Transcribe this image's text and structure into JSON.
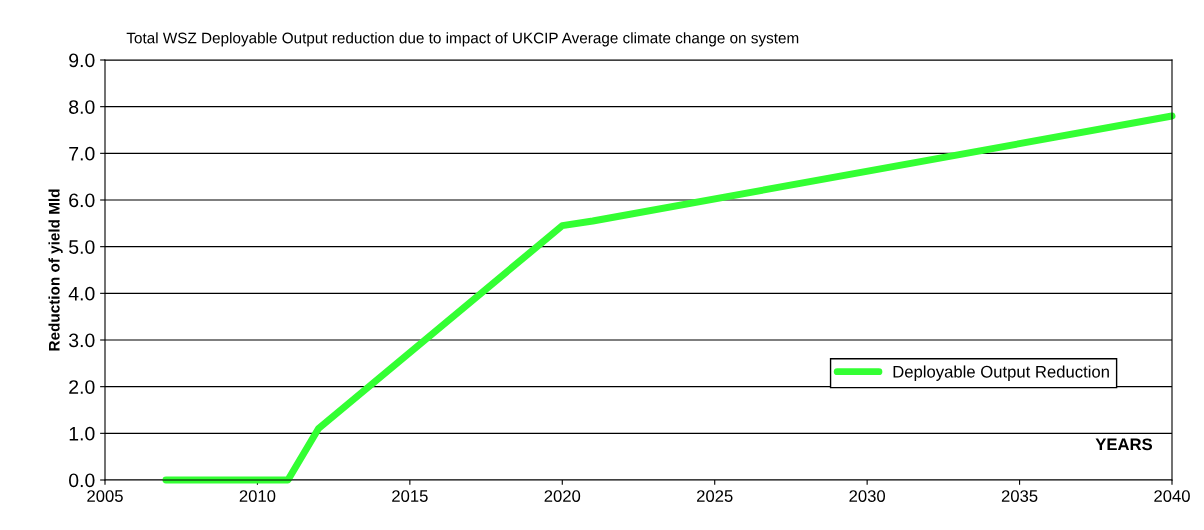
{
  "chart_data": {
    "type": "line",
    "title": "Total WSZ Deployable Output reduction due to impact of UKCIP Average climate change on system",
    "xlabel": "YEARS",
    "ylabel": "Reduction of yield Mld",
    "x": [
      2007,
      2011,
      2012,
      2020,
      2021,
      2040
    ],
    "series": [
      {
        "name": "Deployable Output Reduction",
        "color": "#33ff33",
        "values": [
          0,
          0,
          1.1,
          5.45,
          5.55,
          7.8
        ]
      }
    ],
    "xlim": [
      2005,
      2040
    ],
    "xticks": [
      2005,
      2010,
      2015,
      2020,
      2025,
      2030,
      2035,
      2040
    ],
    "ylim": [
      0,
      9
    ],
    "yticks": [
      {
        "value": 0,
        "label": "0.0"
      },
      {
        "value": 1,
        "label": "1.0"
      },
      {
        "value": 2,
        "label": "2.0"
      },
      {
        "value": 3,
        "label": "3.0"
      },
      {
        "value": 4,
        "label": "4.0"
      },
      {
        "value": 5,
        "label": "5.0"
      },
      {
        "value": 6,
        "label": "6.0"
      },
      {
        "value": 7,
        "label": "7.0"
      },
      {
        "value": 8,
        "label": "8.0"
      },
      {
        "value": 9,
        "label": "9.0"
      }
    ],
    "grid": "y",
    "legend": "bottom right",
    "marker": "none",
    "line_style": "solid"
  }
}
